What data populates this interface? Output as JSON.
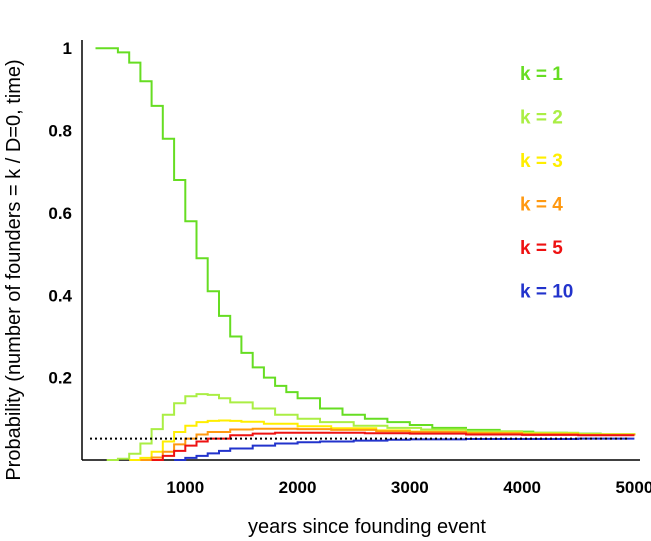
{
  "chart_data": {
    "type": "line",
    "title": "",
    "xlabel": "years since founding event",
    "ylabel": "Probability (number of founders = k / D=0, time)",
    "xlim": [
      80,
      5050
    ],
    "ylim": [
      0,
      1.02
    ],
    "x_ticks": [
      1000,
      2000,
      3000,
      4000,
      5000
    ],
    "y_ticks": [
      {
        "value": 0.2,
        "label": "0.2"
      },
      {
        "value": 0.4,
        "label": "0.4"
      },
      {
        "value": 0.6,
        "label": "0.6"
      },
      {
        "value": 0.8,
        "label": "0.8"
      },
      {
        "value": 1.0,
        "label": "1"
      }
    ],
    "grid": false,
    "legend_position": "top-right",
    "reference_line": {
      "y": 0.052,
      "style": "dotted",
      "color": "#000000"
    },
    "series": [
      {
        "name": "k = 1",
        "color": "#66dd22",
        "x": [
          200,
          300,
          400,
          500,
          600,
          700,
          800,
          900,
          1000,
          1100,
          1200,
          1300,
          1400,
          1500,
          1600,
          1700,
          1800,
          1900,
          2000,
          2200,
          2400,
          2600,
          2800,
          3000,
          3200,
          3500,
          3800,
          4100,
          4400,
          4700,
          5000
        ],
        "values": [
          1.0,
          1.0,
          0.99,
          0.965,
          0.92,
          0.86,
          0.78,
          0.68,
          0.58,
          0.49,
          0.41,
          0.35,
          0.3,
          0.26,
          0.225,
          0.2,
          0.18,
          0.165,
          0.15,
          0.125,
          0.11,
          0.1,
          0.092,
          0.085,
          0.078,
          0.073,
          0.069,
          0.066,
          0.064,
          0.062,
          0.06
        ]
      },
      {
        "name": "k = 2",
        "color": "#aaee44",
        "x": [
          300,
          400,
          500,
          600,
          700,
          800,
          900,
          1000,
          1100,
          1200,
          1300,
          1400,
          1600,
          1800,
          2000,
          2200,
          2500,
          2800,
          3100,
          3500,
          4000,
          4500,
          5000
        ],
        "values": [
          0.0,
          0.003,
          0.015,
          0.04,
          0.075,
          0.11,
          0.138,
          0.155,
          0.16,
          0.158,
          0.15,
          0.14,
          0.125,
          0.11,
          0.1,
          0.092,
          0.083,
          0.078,
          0.074,
          0.07,
          0.066,
          0.063,
          0.06
        ]
      },
      {
        "name": "k = 3",
        "color": "#ffee00",
        "x": [
          500,
          600,
          700,
          800,
          900,
          1000,
          1100,
          1200,
          1300,
          1400,
          1500,
          1700,
          2000,
          2300,
          2700,
          3000,
          3500,
          4000,
          4500,
          5000
        ],
        "values": [
          0.0,
          0.005,
          0.02,
          0.045,
          0.068,
          0.083,
          0.092,
          0.095,
          0.096,
          0.095,
          0.093,
          0.088,
          0.082,
          0.077,
          0.072,
          0.069,
          0.066,
          0.064,
          0.062,
          0.06
        ]
      },
      {
        "name": "k = 4",
        "color": "#ff9911",
        "x": [
          600,
          700,
          800,
          900,
          1000,
          1100,
          1200,
          1400,
          1600,
          1800,
          2000,
          2300,
          2700,
          3000,
          3500,
          4000,
          4500,
          5000
        ],
        "values": [
          0.0,
          0.006,
          0.02,
          0.038,
          0.052,
          0.062,
          0.068,
          0.074,
          0.076,
          0.076,
          0.075,
          0.073,
          0.07,
          0.068,
          0.065,
          0.063,
          0.061,
          0.06
        ]
      },
      {
        "name": "k = 5",
        "color": "#ee1111",
        "x": [
          700,
          800,
          900,
          1000,
          1100,
          1200,
          1400,
          1600,
          1800,
          2000,
          2300,
          2600,
          3000,
          3500,
          4000,
          4500,
          5000
        ],
        "values": [
          0.0,
          0.01,
          0.022,
          0.035,
          0.045,
          0.052,
          0.06,
          0.064,
          0.066,
          0.066,
          0.066,
          0.065,
          0.064,
          0.062,
          0.061,
          0.06,
          0.06
        ]
      },
      {
        "name": "k = 10",
        "color": "#2233cc",
        "x": [
          900,
          1000,
          1100,
          1200,
          1300,
          1400,
          1600,
          1800,
          2000,
          2200,
          2500,
          2800,
          3000,
          3500,
          4000,
          4500,
          5000
        ],
        "values": [
          0.0,
          0.005,
          0.01,
          0.016,
          0.022,
          0.028,
          0.035,
          0.04,
          0.043,
          0.045,
          0.047,
          0.049,
          0.05,
          0.051,
          0.051,
          0.052,
          0.052
        ]
      }
    ]
  }
}
